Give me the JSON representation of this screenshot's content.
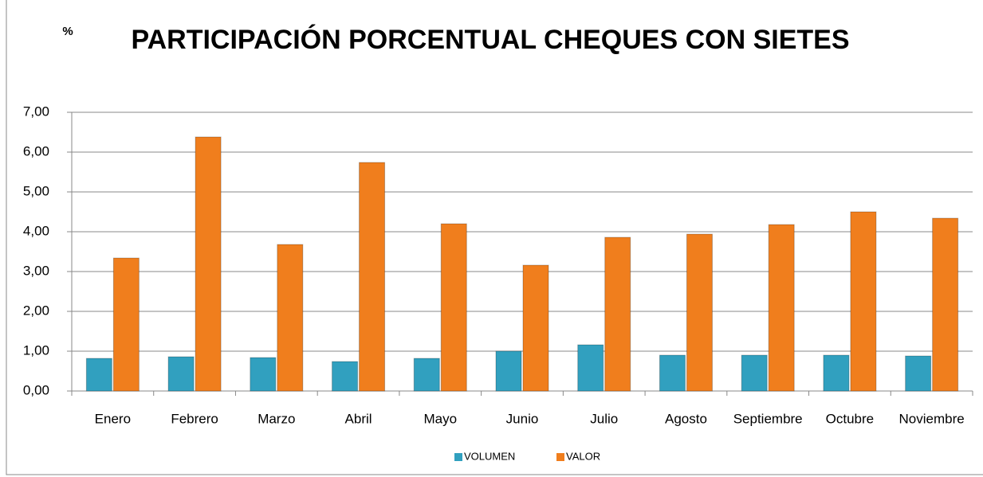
{
  "chart_data": {
    "type": "bar",
    "title": "PARTICIPACIÓN PORCENTUAL CHEQUES CON SIETES",
    "y_label": "%",
    "categories": [
      "Enero",
      "Febrero",
      "Marzo",
      "Abril",
      "Mayo",
      "Junio",
      "Julio",
      "Agosto",
      "Septiembre",
      "Octubre",
      "Noviembre"
    ],
    "series": [
      {
        "name": "VOLUMEN",
        "color": "#31a0bf",
        "values": [
          0.82,
          0.86,
          0.84,
          0.74,
          0.82,
          1.0,
          1.16,
          0.9,
          0.9,
          0.9,
          0.88
        ]
      },
      {
        "name": "VALOR",
        "color": "#f07e1d",
        "values": [
          3.34,
          6.38,
          3.68,
          5.74,
          4.2,
          3.16,
          3.86,
          3.94,
          4.18,
          4.5,
          4.34
        ]
      }
    ],
    "ylim": [
      0,
      7
    ],
    "yticks": [
      {
        "value": 0,
        "label": "0,00"
      },
      {
        "value": 1,
        "label": "1,00"
      },
      {
        "value": 2,
        "label": "2,00"
      },
      {
        "value": 3,
        "label": "3,00"
      },
      {
        "value": 4,
        "label": "4,00"
      },
      {
        "value": 5,
        "label": "5,00"
      },
      {
        "value": 6,
        "label": "6,00"
      },
      {
        "value": 7,
        "label": "7,00"
      }
    ],
    "grid": true,
    "legend": "bottom"
  }
}
